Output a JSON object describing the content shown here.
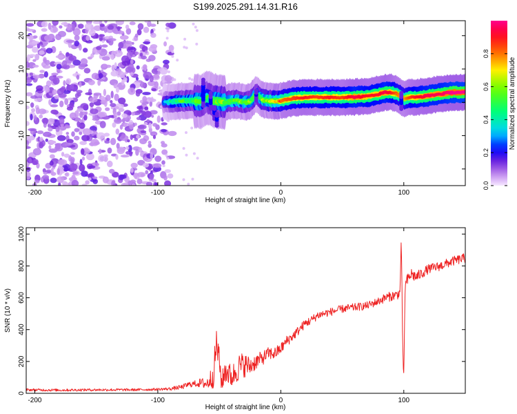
{
  "title": "S199.2025.291.14.31.R16",
  "chart_data": [
    {
      "type": "heatmap",
      "xlabel": "Height of straight line (km)",
      "ylabel": "Frequency (Hz)",
      "xlim": [
        -207,
        150
      ],
      "ylim": [
        -25,
        24.5
      ],
      "xticks": [
        -200,
        -100,
        0,
        100
      ],
      "yticks": [
        -20,
        -10,
        0,
        10,
        20
      ],
      "colorbar": {
        "label": "Normalized spectral amplitude",
        "range": [
          0,
          1
        ],
        "ticks": [
          "0.0",
          "0.2",
          "0.4",
          "0.6",
          "0.8"
        ],
        "tick_values": [
          0.0,
          0.2,
          0.4,
          0.6,
          0.8
        ]
      },
      "noise_region_x": [
        -207,
        -88
      ],
      "ridge": {
        "x": [
          -95,
          -85,
          -75,
          -65,
          -60,
          -55,
          -50,
          -45,
          -40,
          -35,
          -30,
          -25,
          -20,
          -15,
          -10,
          -5,
          0,
          10,
          20,
          30,
          40,
          50,
          60,
          70,
          80,
          85,
          90,
          95,
          100,
          105,
          110,
          120,
          130,
          140,
          150
        ],
        "freq": [
          0.0,
          0.3,
          0.5,
          0.3,
          1.5,
          0.5,
          0.2,
          0.0,
          0.5,
          0.5,
          0.0,
          0.3,
          2.5,
          0.8,
          0.5,
          0.3,
          0.5,
          1.2,
          1.5,
          1.5,
          1.5,
          1.5,
          1.6,
          1.8,
          2.5,
          3.0,
          3.0,
          2.5,
          1.0,
          1.5,
          1.5,
          2.0,
          2.5,
          3.0,
          3.0
        ],
        "amplitude": [
          0.3,
          0.5,
          0.55,
          0.55,
          0.5,
          0.55,
          0.6,
          0.6,
          0.6,
          0.6,
          0.6,
          0.65,
          0.55,
          0.65,
          0.7,
          0.75,
          0.8,
          0.85,
          0.9,
          0.85,
          0.9,
          0.85,
          0.95,
          0.9,
          0.9,
          0.95,
          0.9,
          0.8,
          0.75,
          0.85,
          0.9,
          0.95,
          0.95,
          1.0,
          1.0
        ]
      }
    },
    {
      "type": "line",
      "xlabel": "Height of straight line (km)",
      "ylabel": "SNR (10 * v/v)",
      "xlim": [
        -207,
        150
      ],
      "ylim": [
        0,
        1040
      ],
      "xticks": [
        -200,
        -100,
        0,
        100
      ],
      "yticks": [
        0,
        200,
        400,
        600,
        800,
        1000
      ],
      "series": [
        {
          "name": "SNR",
          "color": "#ee2222",
          "x": [
            -207,
            -180,
            -150,
            -120,
            -100,
            -90,
            -80,
            -75,
            -70,
            -65,
            -60,
            -55,
            -52,
            -50,
            -48,
            -45,
            -40,
            -35,
            -30,
            -25,
            -20,
            -15,
            -10,
            -5,
            0,
            5,
            10,
            15,
            20,
            25,
            30,
            40,
            50,
            60,
            70,
            80,
            85,
            90,
            95,
            97,
            98,
            99,
            100,
            101,
            102,
            104,
            106,
            110,
            120,
            130,
            140,
            150
          ],
          "y": [
            22,
            20,
            22,
            22,
            25,
            28,
            40,
            55,
            60,
            65,
            60,
            110,
            320,
            200,
            60,
            150,
            100,
            160,
            180,
            170,
            200,
            220,
            250,
            250,
            280,
            330,
            360,
            400,
            440,
            460,
            490,
            510,
            530,
            540,
            550,
            580,
            600,
            610,
            620,
            640,
            1000,
            300,
            80,
            650,
            700,
            720,
            750,
            730,
            780,
            800,
            830,
            850
          ],
          "noise_amplitude": [
            8,
            8,
            8,
            8,
            8,
            10,
            15,
            18,
            20,
            30,
            40,
            80,
            120,
            80,
            60,
            90,
            70,
            90,
            80,
            60,
            50,
            45,
            40,
            40,
            35,
            35,
            30,
            30,
            28,
            28,
            26,
            25,
            25,
            25,
            25,
            25,
            30,
            30,
            30,
            30,
            40,
            40,
            40,
            40,
            40,
            40,
            40,
            35,
            30,
            30,
            30,
            30
          ]
        }
      ]
    }
  ]
}
